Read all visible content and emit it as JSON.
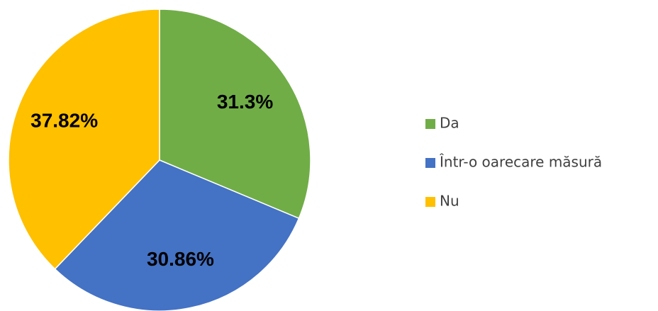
{
  "chart_data": {
    "type": "pie",
    "categories": [
      "Da",
      "Într-o oarecare măsură",
      "Nu"
    ],
    "values": [
      31.3,
      30.86,
      37.82
    ],
    "value_labels": [
      "31.3%",
      "30.86%",
      "37.82%"
    ],
    "colors": [
      "#70ad47",
      "#4472c4",
      "#ffc000"
    ],
    "legend": "right"
  }
}
